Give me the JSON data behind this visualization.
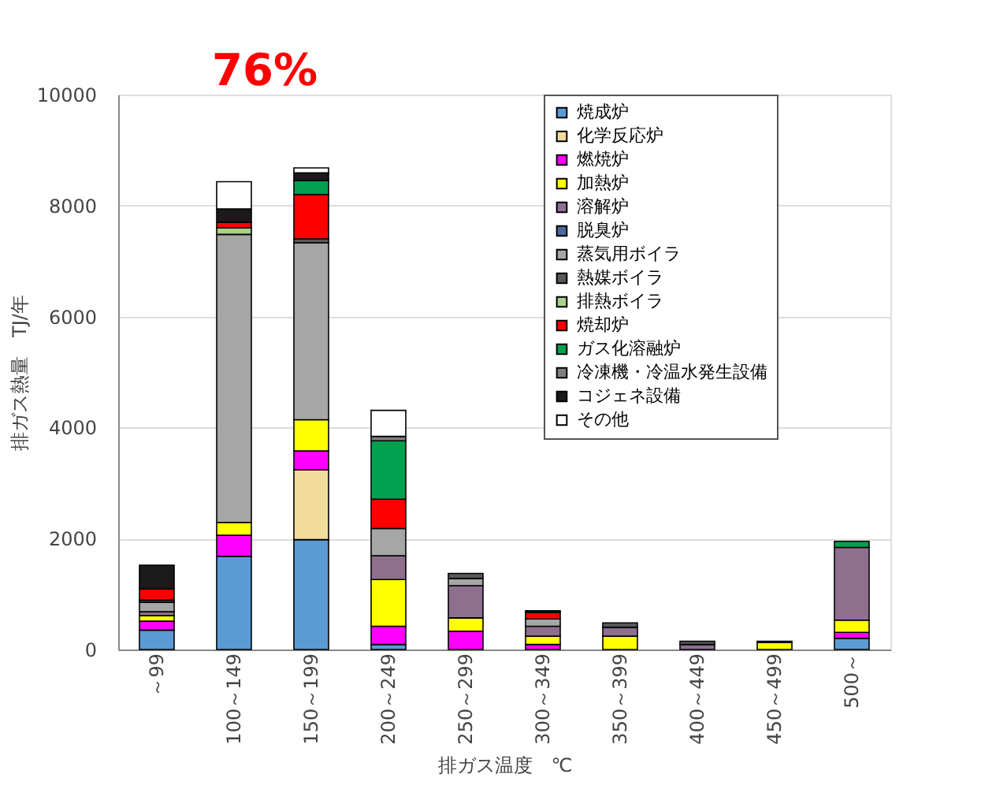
{
  "chart_data": {
    "type": "bar",
    "stacked": true,
    "xlabel": "排ガス温度　℃",
    "ylabel": "排ガス熱量　TJ/年",
    "annotations": [
      "76%"
    ],
    "categories": [
      "～99",
      "100～149",
      "150～199",
      "200～249",
      "250～299",
      "300～349",
      "350～399",
      "400～449",
      "450～499",
      "500～"
    ],
    "ylim": [
      0,
      10000
    ],
    "yticks": [
      0,
      2000,
      4000,
      6000,
      8000,
      10000
    ],
    "grid": "y",
    "legend": "top right",
    "series": [
      {
        "name": "焼成炉",
        "color": "#5b9bd5",
        "values": [
          350,
          1680,
          1980,
          90,
          null,
          null,
          null,
          null,
          null,
          200
        ]
      },
      {
        "name": "化学反応炉",
        "color": "#f2dc9b",
        "values": [
          null,
          null,
          1260,
          null,
          null,
          null,
          null,
          null,
          null,
          null
        ]
      },
      {
        "name": "燃焼炉",
        "color": "#ff00ff",
        "values": [
          160,
          380,
          340,
          330,
          330,
          90,
          null,
          null,
          null,
          110
        ]
      },
      {
        "name": "加熱炉",
        "color": "#ffff00",
        "values": [
          100,
          230,
          560,
          840,
          240,
          150,
          240,
          null,
          130,
          220
        ]
      },
      {
        "name": "溶解炉",
        "color": "#8e6f8e",
        "values": [
          70,
          null,
          null,
          430,
          580,
          180,
          160,
          90,
          null,
          1310
        ]
      },
      {
        "name": "脱臭炉",
        "color": "#4a6a9a",
        "values": [
          null,
          null,
          null,
          null,
          null,
          null,
          null,
          null,
          null,
          null
        ]
      },
      {
        "name": "蒸気用ボイラ",
        "color": "#a6a6a6",
        "values": [
          170,
          5190,
          3190,
          490,
          130,
          130,
          null,
          null,
          null,
          null
        ]
      },
      {
        "name": "熱媒ボイラ",
        "color": "#595959",
        "values": [
          40,
          null,
          70,
          null,
          90,
          null,
          80,
          60,
          20,
          null
        ]
      },
      {
        "name": "排熱ボイラ",
        "color": "#a9d08e",
        "values": [
          null,
          120,
          null,
          null,
          null,
          null,
          null,
          null,
          null,
          null
        ]
      },
      {
        "name": "焼却炉",
        "color": "#ff0000",
        "values": [
          200,
          100,
          800,
          530,
          null,
          120,
          null,
          null,
          null,
          null
        ]
      },
      {
        "name": "ガス化溶融炉",
        "color": "#00a050",
        "values": [
          null,
          null,
          250,
          1050,
          null,
          null,
          null,
          null,
          null,
          110
        ]
      },
      {
        "name": "冷凍機・冷温水発生設備",
        "color": "#7f7f7f",
        "values": [
          null,
          null,
          null,
          80,
          null,
          null,
          null,
          null,
          null,
          null
        ]
      },
      {
        "name": "コジェネ設備",
        "color": "#1a1a1a",
        "values": [
          430,
          240,
          140,
          null,
          null,
          30,
          null,
          null,
          null,
          null
        ]
      },
      {
        "name": "その他",
        "color": "#ffffff",
        "values": [
          null,
          490,
          90,
          470,
          null,
          null,
          null,
          null,
          null,
          null
        ]
      }
    ]
  }
}
